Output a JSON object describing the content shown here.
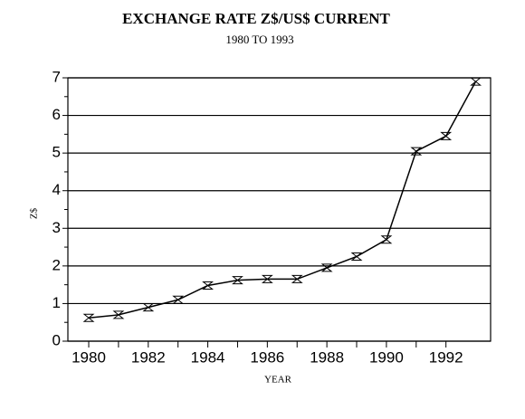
{
  "chart_data": {
    "type": "line",
    "title": "EXCHANGE RATE Z$/US$ CURRENT",
    "subtitle": "1980 TO 1993",
    "x_label": "YEAR",
    "y_label": "Z$",
    "x": [
      1980,
      1981,
      1982,
      1983,
      1984,
      1985,
      1986,
      1987,
      1988,
      1989,
      1990,
      1991,
      1992,
      1993
    ],
    "values": [
      0.62,
      0.7,
      0.9,
      1.1,
      1.48,
      1.62,
      1.65,
      1.65,
      1.95,
      2.25,
      2.7,
      5.05,
      5.45,
      6.9
    ],
    "color": "#000000",
    "xlim": [
      1979.3,
      1993.5
    ],
    "xticks": [
      1980,
      1982,
      1984,
      1986,
      1988,
      1990,
      1992
    ],
    "ylim": [
      0,
      7
    ],
    "yticks": [
      0,
      1,
      2,
      3,
      4,
      5,
      6,
      7
    ],
    "grid": true
  }
}
